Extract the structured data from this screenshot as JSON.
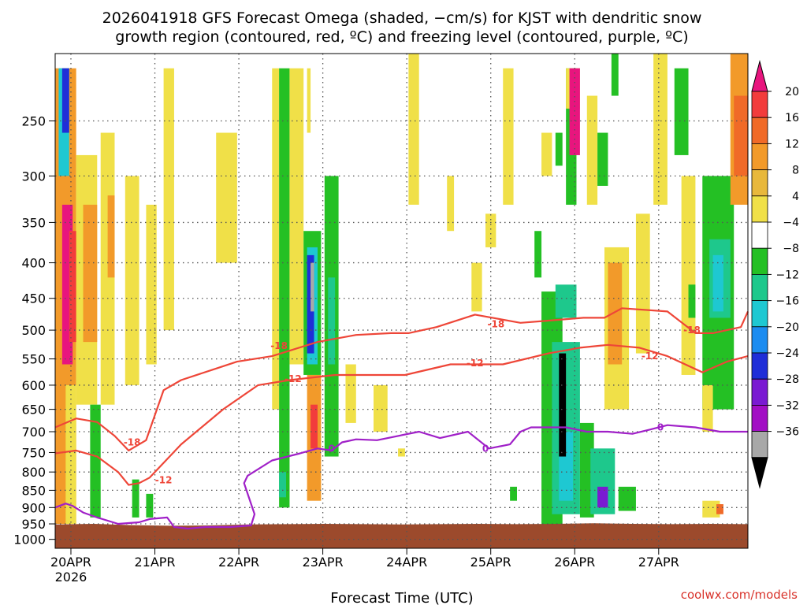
{
  "chart_data": {
    "type": "heatmap",
    "title_line1": "2026041918 GFS Forecast Omega (shaded, −cm/s) for KJST with dendritic snow",
    "title_line2": "growth region (contoured, red, ºC) and freezing level (contoured, purple, ºC)",
    "xlabel": "Forecast Time (UTC)",
    "ylabel": "",
    "credit": "coolwx.com/models",
    "x_ticks": [
      "20APR",
      "21APR",
      "22APR",
      "23APR",
      "24APR",
      "25APR",
      "26APR",
      "27APR"
    ],
    "x_year_label": "2026",
    "x_range_hours": [
      0,
      198
    ],
    "y_ticks": [
      250,
      300,
      350,
      400,
      450,
      500,
      550,
      600,
      650,
      700,
      750,
      800,
      850,
      900,
      950,
      1000
    ],
    "y_range_hpa": [
      200,
      1030
    ],
    "y_scale": "log",
    "grid": true,
    "colorbar": {
      "labels": [
        "20",
        "16",
        "12",
        "8",
        "4",
        "−4",
        "−8",
        "−12",
        "−16",
        "−20",
        "−24",
        "−28",
        "−32",
        "−36"
      ],
      "colors": [
        "#e8157e",
        "#f23c3c",
        "#f06a28",
        "#f29a2a",
        "#e8b83c",
        "#f0e048",
        "#ffffff",
        "#24c024",
        "#1ec88c",
        "#1ec8d2",
        "#1c8cf0",
        "#1f2ed8",
        "#7a1ad2",
        "#a20ec4",
        "#a8a8a8",
        "#000000"
      ]
    },
    "ground_color": "#9c4a2c",
    "ground_level_hpa": [
      952,
      950,
      954,
      956,
      955,
      952,
      951,
      950,
      951,
      952,
      951,
      950,
      951,
      950,
      948,
      950,
      951,
      950,
      951
    ],
    "omega_cells": [
      {
        "t": [
          0,
          6
        ],
        "p": [
          210,
          950
        ],
        "v": 8
      },
      {
        "t": [
          2,
          5
        ],
        "p": [
          330,
          560
        ],
        "v": 20
      },
      {
        "t": [
          4,
          8
        ],
        "p": [
          360,
          520
        ],
        "v": 16
      },
      {
        "t": [
          1,
          4
        ],
        "p": [
          210,
          300
        ],
        "v": -16
      },
      {
        "t": [
          2,
          4
        ],
        "p": [
          210,
          260
        ],
        "v": -24
      },
      {
        "t": [
          3,
          6
        ],
        "p": [
          600,
          950
        ],
        "v": 4
      },
      {
        "t": [
          6,
          12
        ],
        "p": [
          280,
          640
        ],
        "v": 4
      },
      {
        "t": [
          8,
          12
        ],
        "p": [
          330,
          520
        ],
        "v": 8
      },
      {
        "t": [
          13,
          17
        ],
        "p": [
          260,
          640
        ],
        "v": 4
      },
      {
        "t": [
          15,
          17
        ],
        "p": [
          320,
          420
        ],
        "v": 8
      },
      {
        "t": [
          10,
          13
        ],
        "p": [
          640,
          930
        ],
        "v": -8
      },
      {
        "t": [
          20,
          24
        ],
        "p": [
          300,
          600
        ],
        "v": 4
      },
      {
        "t": [
          26,
          29
        ],
        "p": [
          330,
          560
        ],
        "v": 4
      },
      {
        "t": [
          22,
          24
        ],
        "p": [
          820,
          930
        ],
        "v": -8
      },
      {
        "t": [
          26,
          28
        ],
        "p": [
          860,
          930
        ],
        "v": -8
      },
      {
        "t": [
          31,
          34
        ],
        "p": [
          210,
          500
        ],
        "v": 4
      },
      {
        "t": [
          46,
          52
        ],
        "p": [
          260,
          400
        ],
        "v": 4
      },
      {
        "t": [
          62,
          64
        ],
        "p": [
          210,
          650
        ],
        "v": 4
      },
      {
        "t": [
          64,
          67
        ],
        "p": [
          210,
          900
        ],
        "v": -8
      },
      {
        "t": [
          64,
          66
        ],
        "p": [
          800,
          870
        ],
        "v": -12
      },
      {
        "t": [
          67,
          71
        ],
        "p": [
          210,
          560
        ],
        "v": 4
      },
      {
        "t": [
          72,
          73
        ],
        "p": [
          210,
          260
        ],
        "v": 4
      },
      {
        "t": [
          71,
          76
        ],
        "p": [
          360,
          580
        ],
        "v": -8
      },
      {
        "t": [
          72,
          75
        ],
        "p": [
          380,
          560
        ],
        "v": -16
      },
      {
        "t": [
          72,
          74
        ],
        "p": [
          390,
          540
        ],
        "v": -24
      },
      {
        "t": [
          73,
          74
        ],
        "p": [
          400,
          470
        ],
        "v": -32
      },
      {
        "t": [
          72,
          76
        ],
        "p": [
          580,
          880
        ],
        "v": 8
      },
      {
        "t": [
          73,
          75
        ],
        "p": [
          640,
          740
        ],
        "v": 16
      },
      {
        "t": [
          77,
          81
        ],
        "p": [
          300,
          760
        ],
        "v": -8
      },
      {
        "t": [
          78,
          80
        ],
        "p": [
          420,
          560
        ],
        "v": -12
      },
      {
        "t": [
          83,
          86
        ],
        "p": [
          560,
          680
        ],
        "v": 4
      },
      {
        "t": [
          91,
          95
        ],
        "p": [
          600,
          700
        ],
        "v": 4
      },
      {
        "t": [
          101,
          104
        ],
        "p": [
          200,
          330
        ],
        "v": 4
      },
      {
        "t": [
          98,
          100
        ],
        "p": [
          740,
          760
        ],
        "v": 4
      },
      {
        "t": [
          112,
          114
        ],
        "p": [
          300,
          360
        ],
        "v": 4
      },
      {
        "t": [
          119,
          122
        ],
        "p": [
          400,
          470
        ],
        "v": 4
      },
      {
        "t": [
          123,
          126
        ],
        "p": [
          340,
          380
        ],
        "v": 4
      },
      {
        "t": [
          128,
          131
        ],
        "p": [
          210,
          330
        ],
        "v": 4
      },
      {
        "t": [
          130,
          132
        ],
        "p": [
          840,
          880
        ],
        "v": -8
      },
      {
        "t": [
          137,
          139
        ],
        "p": [
          360,
          420
        ],
        "v": -8
      },
      {
        "t": [
          139,
          142
        ],
        "p": [
          260,
          300
        ],
        "v": 4
      },
      {
        "t": [
          143,
          145
        ],
        "p": [
          260,
          290
        ],
        "v": -8
      },
      {
        "t": [
          139,
          145
        ],
        "p": [
          440,
          960
        ],
        "v": -8
      },
      {
        "t": [
          146,
          149
        ],
        "p": [
          210,
          330
        ],
        "v": -8
      },
      {
        "t": [
          146,
          150
        ],
        "p": [
          210,
          240
        ],
        "v": 4
      },
      {
        "t": [
          142,
          150
        ],
        "p": [
          520,
          920
        ],
        "v": -12
      },
      {
        "t": [
          143,
          149
        ],
        "p": [
          430,
          480
        ],
        "v": -12
      },
      {
        "t": [
          144,
          148
        ],
        "p": [
          700,
          880
        ],
        "v": -16
      },
      {
        "t": [
          144,
          146
        ],
        "p": [
          540,
          760
        ],
        "v": -36
      },
      {
        "t": [
          147,
          150
        ],
        "p": [
          210,
          280
        ],
        "v": 20
      },
      {
        "t": [
          150,
          154
        ],
        "p": [
          680,
          930
        ],
        "v": -8
      },
      {
        "t": [
          153,
          160
        ],
        "p": [
          740,
          920
        ],
        "v": -12
      },
      {
        "t": [
          155,
          158
        ],
        "p": [
          840,
          900
        ],
        "v": -28
      },
      {
        "t": [
          152,
          155
        ],
        "p": [
          230,
          330
        ],
        "v": 4
      },
      {
        "t": [
          155,
          158
        ],
        "p": [
          260,
          310
        ],
        "v": -8
      },
      {
        "t": [
          159,
          161
        ],
        "p": [
          200,
          230
        ],
        "v": -8
      },
      {
        "t": [
          157,
          164
        ],
        "p": [
          380,
          650
        ],
        "v": 4
      },
      {
        "t": [
          158,
          162
        ],
        "p": [
          400,
          560
        ],
        "v": 8
      },
      {
        "t": [
          161,
          166
        ],
        "p": [
          840,
          910
        ],
        "v": -8
      },
      {
        "t": [
          166,
          170
        ],
        "p": [
          340,
          540
        ],
        "v": 4
      },
      {
        "t": [
          171,
          175
        ],
        "p": [
          200,
          330
        ],
        "v": 4
      },
      {
        "t": [
          177,
          181
        ],
        "p": [
          210,
          280
        ],
        "v": -8
      },
      {
        "t": [
          179,
          183
        ],
        "p": [
          300,
          580
        ],
        "v": 4
      },
      {
        "t": [
          181,
          183
        ],
        "p": [
          430,
          480
        ],
        "v": -8
      },
      {
        "t": [
          185,
          194
        ],
        "p": [
          300,
          650
        ],
        "v": -8
      },
      {
        "t": [
          187,
          193
        ],
        "p": [
          370,
          480
        ],
        "v": -12
      },
      {
        "t": [
          188,
          191
        ],
        "p": [
          390,
          470
        ],
        "v": -16
      },
      {
        "t": [
          185,
          188
        ],
        "p": [
          600,
          700
        ],
        "v": 4
      },
      {
        "t": [
          185,
          190
        ],
        "p": [
          880,
          930
        ],
        "v": 4
      },
      {
        "t": [
          189,
          191
        ],
        "p": [
          890,
          920
        ],
        "v": 12
      },
      {
        "t": [
          193,
          198
        ],
        "p": [
          200,
          330
        ],
        "v": 8
      },
      {
        "t": [
          194,
          198
        ],
        "p": [
          230,
          300
        ],
        "v": 12
      }
    ],
    "contours": [
      {
        "kind": "dgz",
        "level": -18,
        "label": "-18",
        "t": [
          0,
          6,
          12,
          17,
          21,
          26,
          31,
          36,
          45,
          52,
          62,
          75,
          86,
          96,
          101,
          109,
          120,
          133,
          140,
          151,
          157,
          162,
          175,
          183,
          188,
          196,
          198
        ],
        "p": [
          690,
          670,
          678,
          710,
          745,
          720,
          610,
          590,
          570,
          555,
          545,
          520,
          508,
          505,
          505,
          495,
          475,
          488,
          485,
          480,
          480,
          465,
          470,
          505,
          505,
          495,
          470
        ],
        "labels_at": [
          {
            "t": 22,
            "p": 725
          },
          {
            "t": 64,
            "p": 527
          },
          {
            "t": 126,
            "p": 490
          },
          {
            "t": 182,
            "p": 500
          }
        ]
      },
      {
        "kind": "dgz",
        "level": -12,
        "label": "-12",
        "t": [
          0,
          6,
          12,
          18,
          21,
          24,
          27,
          36,
          48,
          58,
          67,
          80,
          92,
          100,
          113,
          128,
          141,
          150,
          158,
          167,
          175,
          185,
          192,
          198
        ],
        "p": [
          752,
          745,
          760,
          800,
          835,
          830,
          815,
          730,
          650,
          600,
          590,
          580,
          580,
          580,
          560,
          560,
          540,
          530,
          525,
          530,
          545,
          575,
          555,
          545
        ],
        "labels_at": [
          {
            "t": 31,
            "p": 822
          },
          {
            "t": 68,
            "p": 588
          },
          {
            "t": 120,
            "p": 558
          },
          {
            "t": 170,
            "p": 545
          }
        ]
      },
      {
        "kind": "freezing",
        "level": 0,
        "label": "0",
        "t": [
          0,
          3,
          5,
          8,
          12,
          18,
          24,
          27,
          32,
          34,
          38,
          43,
          50,
          56,
          57,
          54,
          55,
          62,
          70,
          75,
          79,
          82,
          86,
          92,
          104,
          110,
          118,
          124,
          130,
          133,
          136,
          146,
          152,
          158,
          165,
          170,
          175,
          183,
          190,
          196,
          198
        ],
        "p": [
          900,
          888,
          895,
          915,
          930,
          950,
          945,
          935,
          930,
          960,
          965,
          960,
          960,
          955,
          920,
          830,
          810,
          770,
          752,
          740,
          745,
          725,
          718,
          720,
          700,
          715,
          700,
          740,
          730,
          700,
          690,
          690,
          700,
          700,
          705,
          695,
          685,
          690,
          700,
          700,
          700
        ],
        "labels_at": [
          {
            "t": 79,
            "p": 740
          },
          {
            "t": 123,
            "p": 740
          },
          {
            "t": 173,
            "p": 690
          }
        ]
      }
    ]
  }
}
